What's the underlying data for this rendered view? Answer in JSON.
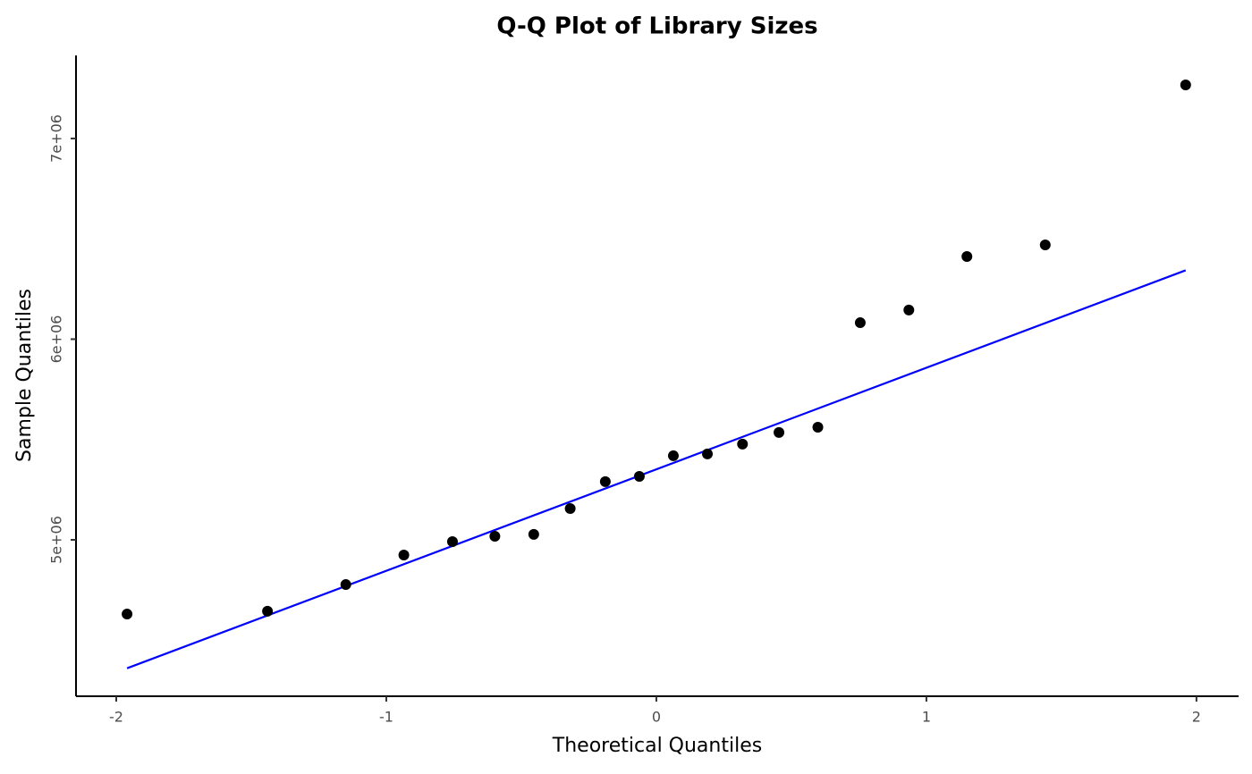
{
  "chart_data": {
    "type": "scatter",
    "title": "Q-Q Plot of Library Sizes",
    "x_label": "Theoretical Quantiles",
    "y_label": "Sample Quantiles",
    "x": [
      -1.96,
      -1.44,
      -1.15,
      -0.935,
      -0.755,
      -0.598,
      -0.454,
      -0.319,
      -0.189,
      -0.063,
      0.063,
      0.189,
      0.319,
      0.454,
      0.598,
      0.755,
      0.935,
      1.15,
      1.44,
      1.96
    ],
    "values": [
      4630000,
      4644000,
      4777000,
      4924000,
      4991000,
      5018000,
      5027000,
      5156000,
      5290000,
      5316000,
      5419000,
      5428000,
      5477000,
      5535000,
      5561000,
      6082000,
      6145000,
      6412000,
      6470000,
      7267000
    ],
    "color": "#000000",
    "line": {
      "x": [
        -1.96,
        1.96
      ],
      "values": [
        4360000,
        6343000
      ],
      "color": "#0000ff"
    },
    "xlim": [
      -2.149,
      2.156
    ],
    "ylim": [
      4220500,
      7414000
    ],
    "xticks": [
      -2,
      -1,
      0,
      1,
      2
    ],
    "yticks": [
      {
        "value": 5000000,
        "label": "5e+06"
      },
      {
        "value": 6000000,
        "label": "6e+06"
      },
      {
        "value": 7000000,
        "label": "7e+06"
      }
    ],
    "grid": false
  }
}
